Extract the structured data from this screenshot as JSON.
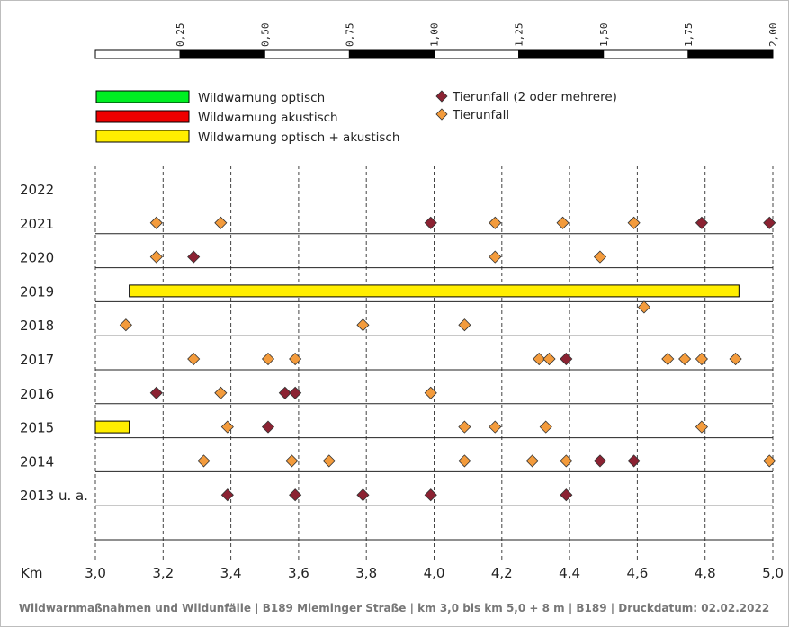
{
  "scale_bar": {
    "labels": [
      "0,25",
      "0,50",
      "0,75",
      "1,00",
      "1,25",
      "1,50",
      "1,75",
      "2,00"
    ]
  },
  "legend": {
    "items": [
      {
        "label": "Wildwarnung optisch",
        "color": "#00ee22",
        "kind": "bar"
      },
      {
        "label": "Wildwarnung akustisch",
        "color": "#ee0000",
        "kind": "bar"
      },
      {
        "label": "Wildwarnung optisch + akustisch",
        "color": "#ffee00",
        "kind": "bar"
      },
      {
        "label": "Tierunfall (2 oder mehrere)",
        "color": "#8b2232",
        "kind": "diamond"
      },
      {
        "label": "Tierunfall",
        "color": "#f39b3c",
        "kind": "diamond"
      }
    ]
  },
  "axis": {
    "unit_label": "Km"
  },
  "footer": "Wildwarnmaßnahmen und Wildunfälle | B189 Mieminger Straße | km 3,0 bis km 5,0 + 8 m | B189 | Druckdatum: 02.02.2022",
  "chart_data": {
    "type": "scatter",
    "x_axis": {
      "label": "Km",
      "range": [
        3.0,
        5.0
      ],
      "ticks": [
        "3,0",
        "3,2",
        "3,4",
        "3,6",
        "3,8",
        "4,0",
        "4,2",
        "4,4",
        "4,6",
        "4,8",
        "5,0"
      ],
      "grid": "vertical dashed"
    },
    "rows": [
      "2022",
      "2021",
      "2020",
      "2019",
      "2018",
      "2017",
      "2016",
      "2015",
      "2014",
      "2013 u. a."
    ],
    "warnings": [
      {
        "year": "2019",
        "type": "Wildwarnung optisch + akustisch",
        "from_km": 3.1,
        "to_km": 4.9
      },
      {
        "year": "2015",
        "type": "Wildwarnung optisch + akustisch",
        "from_km": 3.0,
        "to_km": 3.1
      }
    ],
    "series": [
      {
        "name": "Tierunfall (2 oder mehrere)",
        "points": [
          {
            "year": "2021",
            "km": 3.99
          },
          {
            "year": "2021",
            "km": 4.79
          },
          {
            "year": "2021",
            "km": 4.99
          },
          {
            "year": "2020",
            "km": 3.29
          },
          {
            "year": "2017",
            "km": 4.39
          },
          {
            "year": "2016",
            "km": 3.18
          },
          {
            "year": "2016",
            "km": 3.56
          },
          {
            "year": "2016",
            "km": 3.59
          },
          {
            "year": "2015",
            "km": 3.51
          },
          {
            "year": "2014",
            "km": 4.49
          },
          {
            "year": "2014",
            "km": 4.59
          },
          {
            "year": "2013 u. a.",
            "km": 3.39
          },
          {
            "year": "2013 u. a.",
            "km": 3.59
          },
          {
            "year": "2013 u. a.",
            "km": 3.79
          },
          {
            "year": "2013 u. a.",
            "km": 3.99
          },
          {
            "year": "2013 u. a.",
            "km": 4.39
          }
        ]
      },
      {
        "name": "Tierunfall",
        "points": [
          {
            "year": "2021",
            "km": 3.18
          },
          {
            "year": "2021",
            "km": 3.37
          },
          {
            "year": "2021",
            "km": 4.18
          },
          {
            "year": "2021",
            "km": 4.38
          },
          {
            "year": "2021",
            "km": 4.59
          },
          {
            "year": "2020",
            "km": 3.18
          },
          {
            "year": "2020",
            "km": 4.18
          },
          {
            "year": "2020",
            "km": 4.49
          },
          {
            "year": "2019",
            "km": 4.62
          },
          {
            "year": "2018",
            "km": 3.09
          },
          {
            "year": "2018",
            "km": 3.79
          },
          {
            "year": "2018",
            "km": 4.09
          },
          {
            "year": "2017",
            "km": 3.29
          },
          {
            "year": "2017",
            "km": 3.51
          },
          {
            "year": "2017",
            "km": 3.59
          },
          {
            "year": "2017",
            "km": 4.31
          },
          {
            "year": "2017",
            "km": 4.34
          },
          {
            "year": "2017",
            "km": 4.69
          },
          {
            "year": "2017",
            "km": 4.74
          },
          {
            "year": "2017",
            "km": 4.79
          },
          {
            "year": "2017",
            "km": 4.89
          },
          {
            "year": "2016",
            "km": 3.37
          },
          {
            "year": "2016",
            "km": 3.99
          },
          {
            "year": "2015",
            "km": 3.39
          },
          {
            "year": "2015",
            "km": 4.09
          },
          {
            "year": "2015",
            "km": 4.18
          },
          {
            "year": "2015",
            "km": 4.33
          },
          {
            "year": "2015",
            "km": 4.79
          },
          {
            "year": "2014",
            "km": 3.32
          },
          {
            "year": "2014",
            "km": 3.58
          },
          {
            "year": "2014",
            "km": 3.69
          },
          {
            "year": "2014",
            "km": 4.09
          },
          {
            "year": "2014",
            "km": 4.29
          },
          {
            "year": "2014",
            "km": 4.39
          },
          {
            "year": "2014",
            "km": 4.99
          }
        ]
      }
    ]
  }
}
